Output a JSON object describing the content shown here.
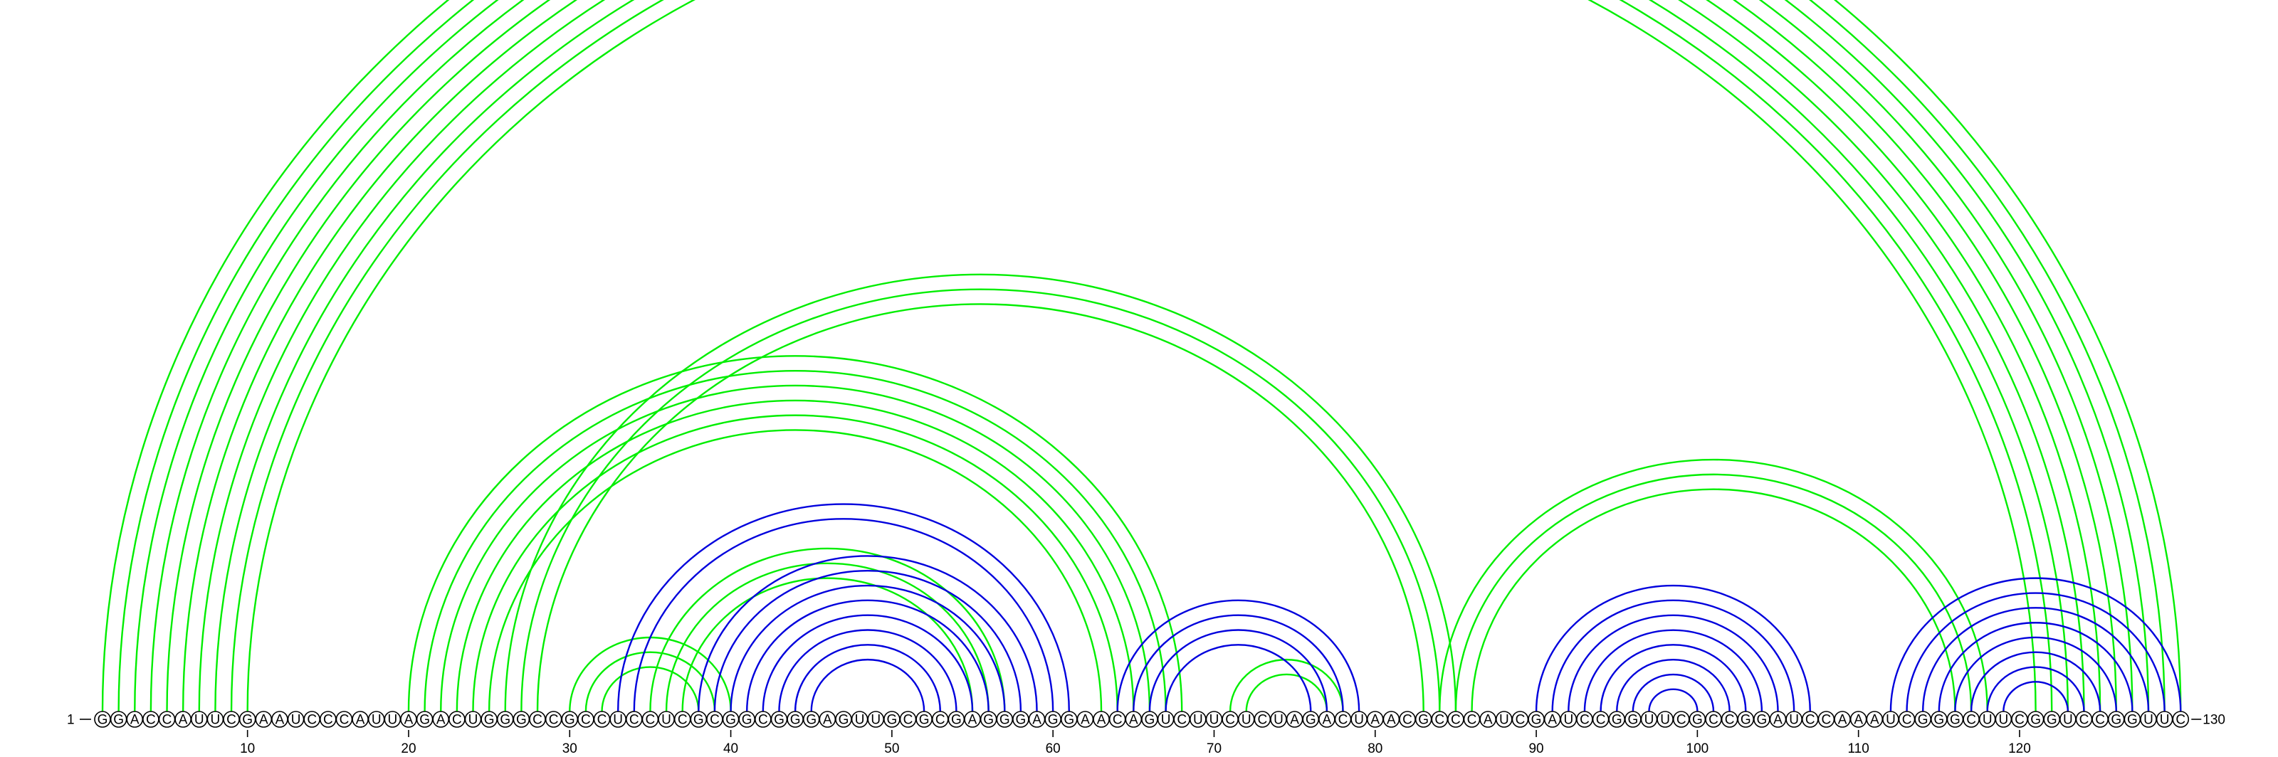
{
  "sequence": "GGACCAUUCGAAUCCCAUUAGACUGGGCCGCCUCCUCGCGGCGGGAGUUGCGCGAGGGAGGAACAGUCUUCUCUAGACUAACGCCCAUCGAUCCGGUUCGCCGGAUCCAAAUCGGGCUUCGGUCCGGUUC",
  "length_label_start": "1",
  "length_label_end": "130",
  "tick_labels": [
    "10",
    "20",
    "30",
    "40",
    "50",
    "60",
    "70",
    "80",
    "90",
    "100",
    "110",
    "120"
  ],
  "colors": {
    "structure_a": "#00ee00",
    "structure_b": "#0000dd",
    "nucleotide_fill": "#ffffff",
    "nucleotide_stroke": "#000000"
  },
  "chart_data": {
    "type": "arc-diagram",
    "x_axis": "nucleotide position",
    "xlim": [
      1,
      130
    ],
    "tick_positions": [
      10,
      20,
      30,
      40,
      50,
      60,
      70,
      80,
      90,
      100,
      110,
      120
    ],
    "series": [
      {
        "color": "#00ee00",
        "pairs": [
          [
            1,
            130
          ],
          [
            2,
            129
          ],
          [
            3,
            128
          ],
          [
            4,
            127
          ],
          [
            5,
            126
          ],
          [
            6,
            125
          ],
          [
            7,
            124
          ],
          [
            8,
            123
          ],
          [
            9,
            122
          ],
          [
            10,
            121
          ],
          [
            20,
            68
          ],
          [
            21,
            67
          ],
          [
            22,
            66
          ],
          [
            23,
            65
          ],
          [
            24,
            64
          ],
          [
            25,
            63
          ],
          [
            26,
            85
          ],
          [
            27,
            84
          ],
          [
            28,
            83
          ],
          [
            30,
            40
          ],
          [
            31,
            39
          ],
          [
            32,
            38
          ],
          [
            35,
            57
          ],
          [
            36,
            56
          ],
          [
            37,
            55
          ],
          [
            84,
            118
          ],
          [
            85,
            117
          ],
          [
            86,
            116
          ],
          [
            71,
            78
          ],
          [
            72,
            77
          ]
        ]
      },
      {
        "color": "#0000dd",
        "pairs": [
          [
            33,
            61
          ],
          [
            34,
            60
          ],
          [
            38,
            59
          ],
          [
            39,
            58
          ],
          [
            40,
            57
          ],
          [
            41,
            56
          ],
          [
            42,
            55
          ],
          [
            43,
            54
          ],
          [
            44,
            53
          ],
          [
            45,
            52
          ],
          [
            64,
            79
          ],
          [
            65,
            78
          ],
          [
            66,
            77
          ],
          [
            67,
            76
          ],
          [
            90,
            107
          ],
          [
            91,
            106
          ],
          [
            92,
            105
          ],
          [
            93,
            104
          ],
          [
            94,
            103
          ],
          [
            95,
            102
          ],
          [
            96,
            101
          ],
          [
            97,
            100
          ],
          [
            112,
            130
          ],
          [
            113,
            129
          ],
          [
            114,
            128
          ],
          [
            115,
            127
          ],
          [
            116,
            126
          ],
          [
            117,
            125
          ],
          [
            118,
            124
          ],
          [
            119,
            123
          ]
        ]
      }
    ]
  }
}
